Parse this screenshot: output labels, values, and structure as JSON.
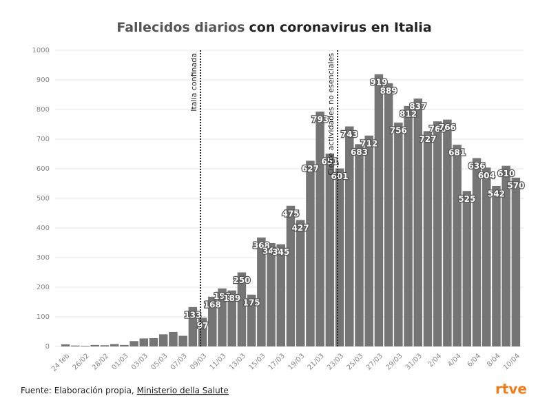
{
  "chart_data": {
    "type": "bar",
    "title_parts": [
      "Fallecidos diarios",
      "con coronavirus en Italia"
    ],
    "categories": [
      "24 feb",
      null,
      "26/02",
      null,
      "28/02",
      null,
      "01/03",
      null,
      "03/03",
      null,
      "05/03",
      null,
      "07/03",
      null,
      "09/03",
      null,
      "11/03",
      null,
      "13/03",
      null,
      "15/03",
      null,
      "17/03",
      null,
      "19/03",
      null,
      "21/03",
      null,
      "23/03",
      null,
      "25/03",
      null,
      "27/03",
      null,
      "29/03",
      null,
      "31/03",
      null,
      "2/04",
      null,
      "4/04",
      null,
      "6/04",
      null,
      "8/04",
      null,
      "10/04"
    ],
    "values": [
      7,
      3,
      2,
      5,
      4,
      8,
      5,
      18,
      27,
      28,
      41,
      49,
      36,
      133,
      97,
      168,
      196,
      189,
      250,
      175,
      368,
      349,
      345,
      475,
      427,
      627,
      793,
      651,
      601,
      743,
      683,
      712,
      919,
      889,
      756,
      812,
      837,
      727,
      760,
      766,
      681,
      525,
      636,
      604,
      542,
      610,
      570
    ],
    "value_labels": [
      null,
      null,
      null,
      null,
      null,
      null,
      null,
      null,
      null,
      null,
      null,
      null,
      null,
      "133",
      "97",
      "168",
      "196",
      "189",
      "250",
      "175",
      "368",
      "349",
      "345",
      "475",
      "427",
      "627",
      "793",
      "651",
      "601",
      "743",
      "683",
      "712",
      "919",
      "889",
      "756",
      "812",
      "837",
      "727",
      "760",
      "766",
      "681",
      "525",
      "636",
      "604",
      "542",
      "610",
      "570"
    ],
    "color": "#757575",
    "ylim": [
      0,
      1000
    ],
    "yticks": [
      0,
      100,
      200,
      300,
      400,
      500,
      600,
      700,
      800,
      900,
      1000
    ],
    "grid": true,
    "annotations": [
      {
        "text": "Italia confinada",
        "category": "09/03"
      },
      {
        "text": "Cierre actividades no esenciales",
        "category": "23/03"
      }
    ],
    "source": "Fuente: Elaboración propia,",
    "source_link": "Ministerio della Salute",
    "logo": "rtve"
  }
}
